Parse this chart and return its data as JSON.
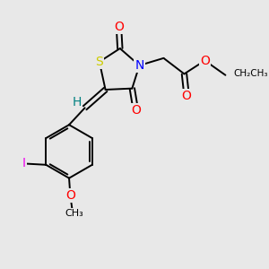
{
  "bg_color": "#e8e8e8",
  "bond_color": "#000000",
  "bond_width": 1.4,
  "atom_colors": {
    "S": "#cccc00",
    "N": "#0000ff",
    "O": "#ff0000",
    "I": "#ee00ee",
    "H": "#008080",
    "C": "#000000"
  },
  "fig_w": 3.0,
  "fig_h": 3.0,
  "dpi": 100
}
